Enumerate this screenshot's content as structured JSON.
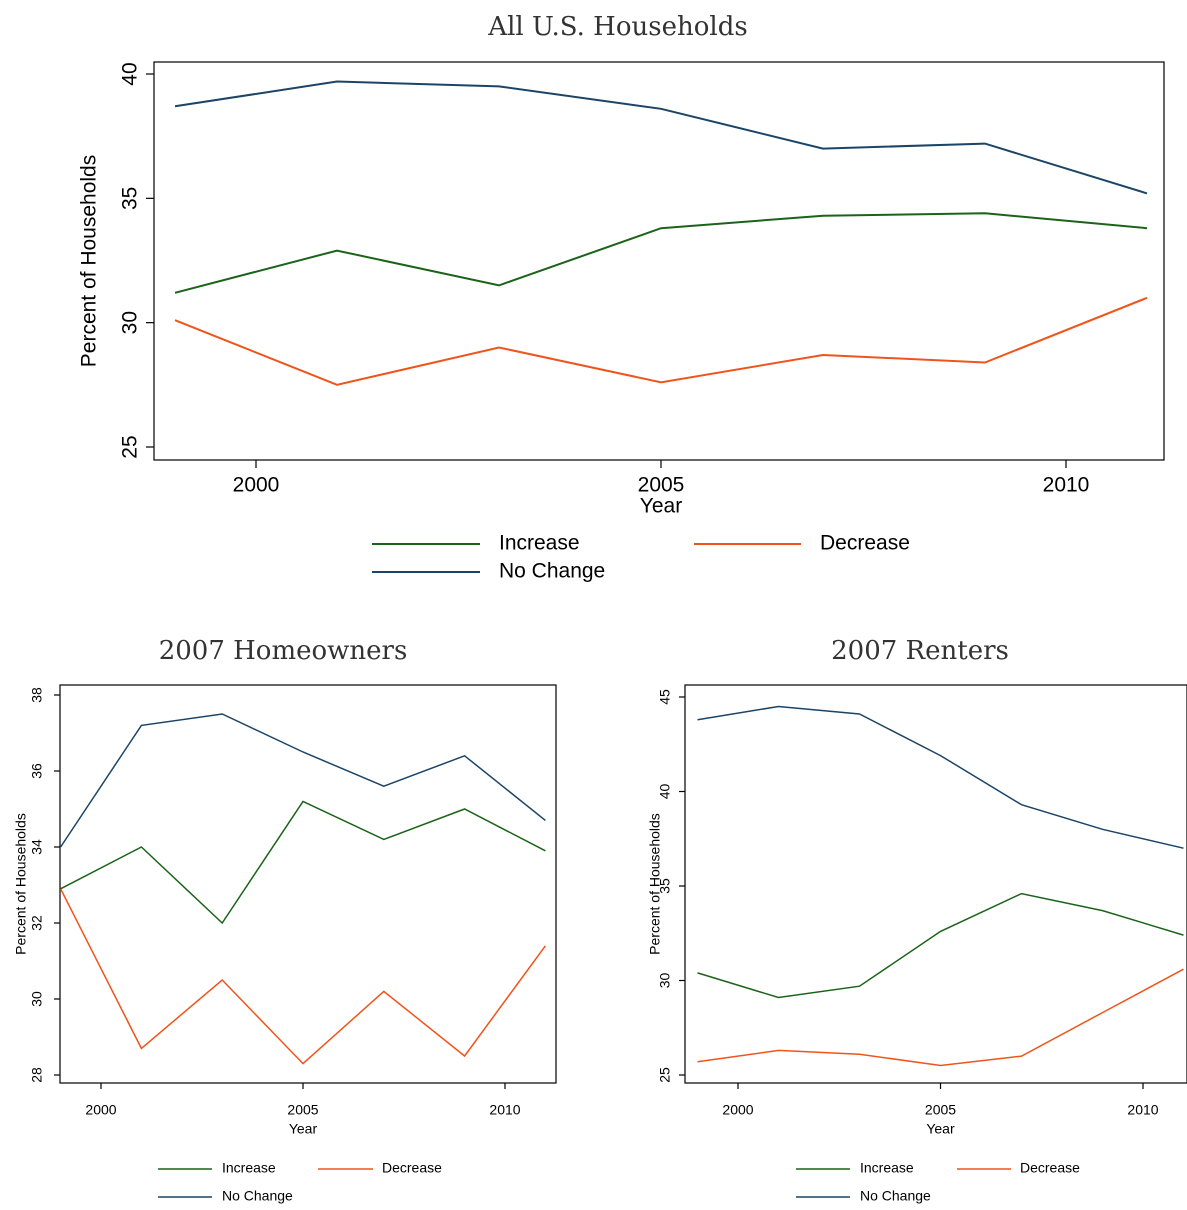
{
  "chart_data": [
    {
      "type": "line",
      "title": "All U.S. Households",
      "xlabel": "Year",
      "ylabel": "Percent of Households",
      "xlim": [
        1999,
        2011
      ],
      "ylim": [
        25,
        40
      ],
      "x": [
        1999,
        2001,
        2003,
        2005,
        2007,
        2009,
        2011
      ],
      "xticks": [
        "2000",
        "2005",
        "2010"
      ],
      "yticks": [
        "25",
        "30",
        "35",
        "40"
      ],
      "series": [
        {
          "name": "Increase",
          "color": "#1a6318",
          "values": [
            31.2,
            32.9,
            31.5,
            33.8,
            34.3,
            34.4,
            33.8
          ]
        },
        {
          "name": "Decrease",
          "color": "#f0541a",
          "values": [
            30.1,
            27.5,
            29.0,
            27.6,
            28.7,
            28.4,
            31.0
          ]
        },
        {
          "name": "No Change",
          "color": "#1b4466",
          "values": [
            38.7,
            39.7,
            39.5,
            38.6,
            37.0,
            37.2,
            35.2
          ]
        }
      ],
      "legend": [
        "Increase",
        "Decrease",
        "No Change"
      ],
      "legend_position": "bottom",
      "grid": false
    },
    {
      "type": "line",
      "title": "2007 Homeowners",
      "xlabel": "Year",
      "ylabel": "Percent of Households",
      "xlim": [
        1999,
        2011
      ],
      "ylim": [
        28,
        38
      ],
      "x": [
        1999,
        2001,
        2003,
        2005,
        2007,
        2009,
        2011
      ],
      "xticks": [
        "2000",
        "2005",
        "2010"
      ],
      "yticks": [
        "28",
        "30",
        "32",
        "34",
        "36",
        "38"
      ],
      "series": [
        {
          "name": "Increase",
          "color": "#1a6318",
          "values": [
            32.9,
            34.0,
            32.0,
            35.2,
            34.2,
            35.0,
            33.9
          ]
        },
        {
          "name": "Decrease",
          "color": "#f0541a",
          "values": [
            32.9,
            28.7,
            30.5,
            28.3,
            30.2,
            28.5,
            31.4
          ]
        },
        {
          "name": "No Change",
          "color": "#1b4466",
          "values": [
            34.0,
            37.2,
            37.5,
            36.5,
            35.6,
            36.4,
            34.7
          ]
        }
      ],
      "legend": [
        "Increase",
        "Decrease",
        "No Change"
      ],
      "legend_position": "bottom",
      "grid": false
    },
    {
      "type": "line",
      "title": "2007 Renters",
      "xlabel": "Year",
      "ylabel": "Percent of Households",
      "xlim": [
        1999,
        2011
      ],
      "ylim": [
        25,
        45
      ],
      "x": [
        1999,
        2001,
        2003,
        2005,
        2007,
        2009,
        2011
      ],
      "xticks": [
        "2000",
        "2005",
        "2010"
      ],
      "yticks": [
        "25",
        "30",
        "35",
        "40",
        "45"
      ],
      "series": [
        {
          "name": "Increase",
          "color": "#1a6318",
          "values": [
            30.4,
            29.1,
            29.7,
            32.6,
            34.6,
            33.7,
            32.4
          ]
        },
        {
          "name": "Decrease",
          "color": "#f0541a",
          "values": [
            25.7,
            26.3,
            26.1,
            25.5,
            26.0,
            28.3,
            30.6
          ]
        },
        {
          "name": "No Change",
          "color": "#1b4466",
          "values": [
            43.8,
            44.5,
            44.1,
            41.9,
            39.3,
            38.0,
            37.0
          ]
        }
      ],
      "legend": [
        "Increase",
        "Decrease",
        "No Change"
      ],
      "legend_position": "bottom",
      "grid": false
    }
  ]
}
